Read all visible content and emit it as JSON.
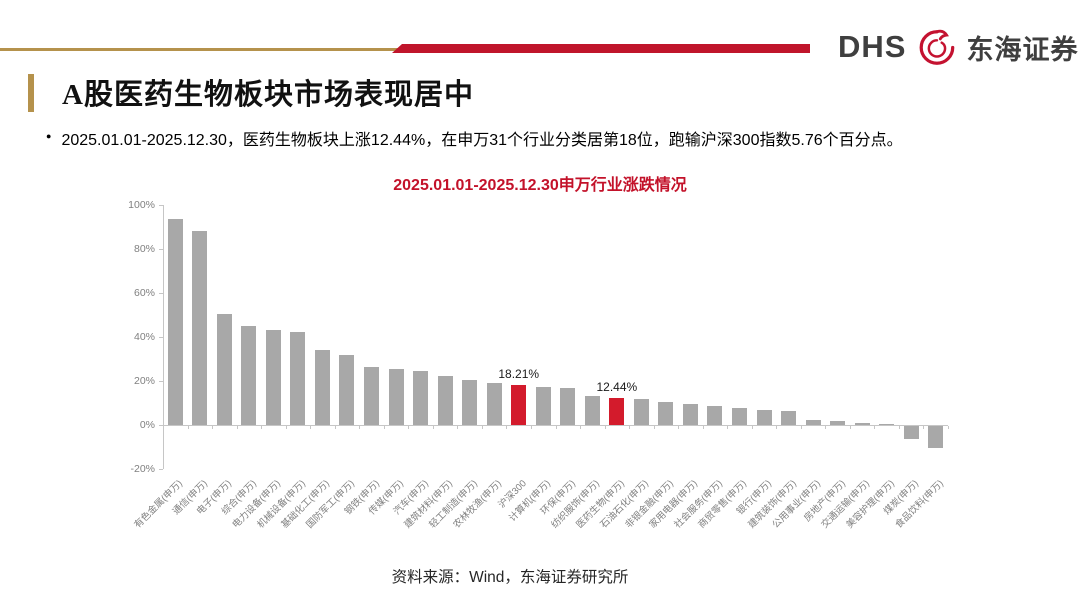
{
  "header": {
    "logo_dhs": "DHS",
    "logo_cn": "东海证券"
  },
  "title": "A股医药生物板块市场表现居中",
  "bullet": "2025.01.01-2025.12.30，医药生物板块上涨12.44%，在申万31个行业分类居第18位，跑输沪深300指数5.76个百分点。",
  "footer": "资料来源：Wind，东海证券研究所",
  "colors": {
    "gold": "#b5924c",
    "banner_red": "#c0152b",
    "chart_title_red": "#c3122a",
    "bar_gray": "#a8a8a8",
    "bar_red": "#d31b2c",
    "axis_gray": "#c6c6c6",
    "tick_label_gray": "#808080"
  },
  "chart_data": {
    "type": "bar",
    "title": "2025.01.01-2025.12.30申万行业涨跌情况",
    "categories": [
      "有色金属(申万)",
      "通信(申万)",
      "电子(申万)",
      "综合(申万)",
      "电力设备(申万)",
      "机械设备(申万)",
      "基础化工(申万)",
      "国防军工(申万)",
      "钢铁(申万)",
      "传媒(申万)",
      "汽车(申万)",
      "建筑材料(申万)",
      "轻工制造(申万)",
      "农林牧渔(申万)",
      "沪深300",
      "计算机(申万)",
      "环保(申万)",
      "纺织服饰(申万)",
      "医药生物(申万)",
      "石油石化(申万)",
      "非银金融(申万)",
      "家用电器(申万)",
      "社会服务(申万)",
      "商贸零售(申万)",
      "银行(申万)",
      "建筑装饰(申万)",
      "公用事业(申万)",
      "房地产(申万)",
      "交通运输(申万)",
      "美容护理(申万)",
      "煤炭(申万)",
      "食品饮料(申万)"
    ],
    "values": [
      93.5,
      88.0,
      50.3,
      45.0,
      43.4,
      42.1,
      34.1,
      31.6,
      26.3,
      25.6,
      24.5,
      22.2,
      20.3,
      19.0,
      18.21,
      17.3,
      16.9,
      13.0,
      12.44,
      11.8,
      10.5,
      9.5,
      8.5,
      7.7,
      7.0,
      6.3,
      2.2,
      1.6,
      1.0,
      0.4,
      -5.7,
      -9.8
    ],
    "highlight_indices": [
      14,
      18
    ],
    "value_labels": [
      {
        "index": 14,
        "text": "18.21%"
      },
      {
        "index": 18,
        "text": "12.44%"
      }
    ],
    "xlabel": "",
    "ylabel": "",
    "ylim": [
      -20,
      100
    ],
    "yticks": [
      "100%",
      "80%",
      "60%",
      "40%",
      "20%",
      "0%",
      "-20%"
    ],
    "grid": false,
    "legend": false
  }
}
